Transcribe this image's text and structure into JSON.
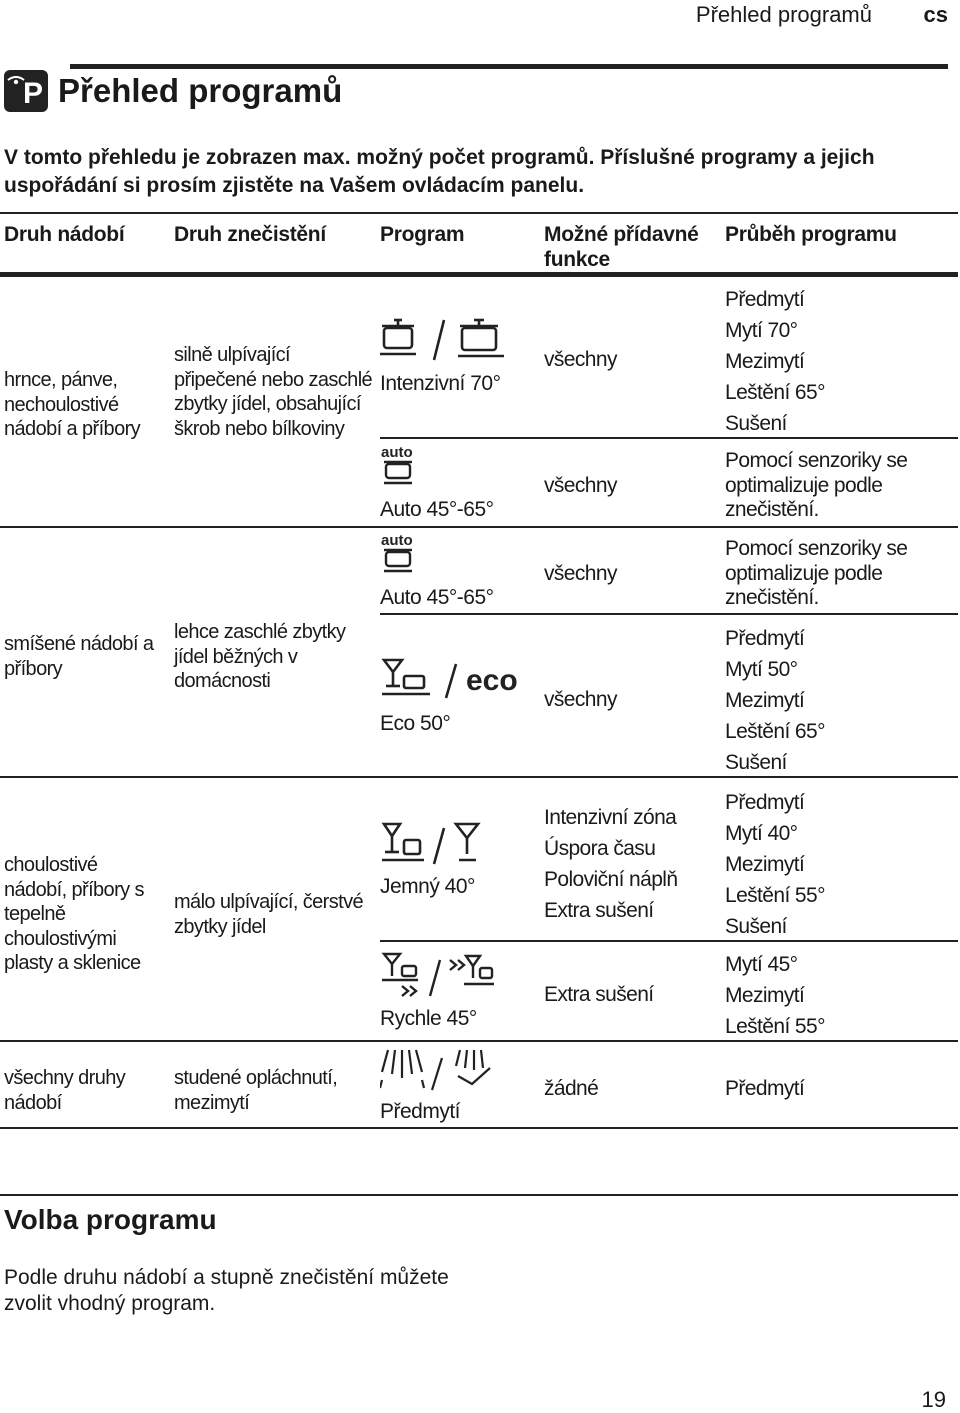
{
  "header": {
    "title": "Přehled programů",
    "lang": "cs"
  },
  "section": {
    "icon_letter": "P",
    "title": "Přehled programů",
    "intro": "V tomto přehledu je zobrazen max. možný počet programů. Příslušné programy a jejich uspořádání si prosím zjistěte na Vašem ovládacím panelu."
  },
  "table": {
    "headers": [
      "Druh nádobí",
      "Druh znečistění",
      "Program",
      "Možné přídavné funkce",
      "Průběh programu"
    ],
    "groups": [
      {
        "dishes": "hrnce, pánve, nechoulostivé nádobí a příbory",
        "soil": "silně ulpívající připečené nebo zaschlé zbytky jídel, obsahující škrob nebo bílkoviny"
      },
      {
        "dishes": "smíšené nádobí a příbory",
        "soil": "lehce zaschlé zbytky jídel běžných v domácnosti"
      },
      {
        "dishes": "choulostivé nádobí, příbory s tepelně choulostivými plasty a sklenice",
        "soil": "málo ulpívající, čerstvé zbytky jídel"
      },
      {
        "dishes": "všechny druhy nádobí",
        "soil": "studené opláchnutí, mezimytí"
      }
    ],
    "programs": [
      {
        "name": "Intenzivní 70°",
        "icon": "pot-icon",
        "functions": [
          "všechny"
        ],
        "stages": [
          "Předmytí",
          "Mytí 70°",
          "Mezimytí",
          "Leštění 65°",
          "Sušení"
        ]
      },
      {
        "name": "Auto 45°-65°",
        "icon": "auto-icon",
        "auto_label": "auto",
        "functions": [
          "všechny"
        ],
        "stages": [
          "Pomocí senzoriky se optimalizuje podle znečistění."
        ]
      },
      {
        "name": "Auto 45°-65°",
        "icon": "auto-icon",
        "auto_label": "auto",
        "functions": [
          "všechny"
        ],
        "stages": [
          "Pomocí senzoriky se optimalizuje podle znečistění."
        ]
      },
      {
        "name": "Eco 50°",
        "icon": "eco-icon",
        "eco_label": "eco",
        "functions": [
          "všechny"
        ],
        "stages": [
          "Předmytí",
          "Mytí 50°",
          "Mezimytí",
          "Leštění 65°",
          "Sušení"
        ]
      },
      {
        "name": "Jemný 40°",
        "icon": "glass-icon",
        "functions": [
          "Intenzivní zóna",
          "Úspora času",
          "Poloviční náplň",
          "Extra sušení"
        ],
        "stages": [
          "Předmytí",
          "Mytí 40°",
          "Mezimytí",
          "Leštění 55°",
          "Sušení"
        ]
      },
      {
        "name": "Rychle 45°",
        "icon": "quick-icon",
        "functions": [
          "Extra sušení"
        ],
        "stages": [
          "Mytí 45°",
          "Mezimytí",
          "Leštění 55°"
        ]
      },
      {
        "name": "Předmytí",
        "icon": "prerinse-icon",
        "functions": [
          "žádné"
        ],
        "stages": [
          "Předmytí"
        ]
      }
    ]
  },
  "selection": {
    "title": "Volba programu",
    "text": "Podle druhu nádobí a stupně znečistění můžete zvolit vhodný program."
  },
  "page_number": "19"
}
